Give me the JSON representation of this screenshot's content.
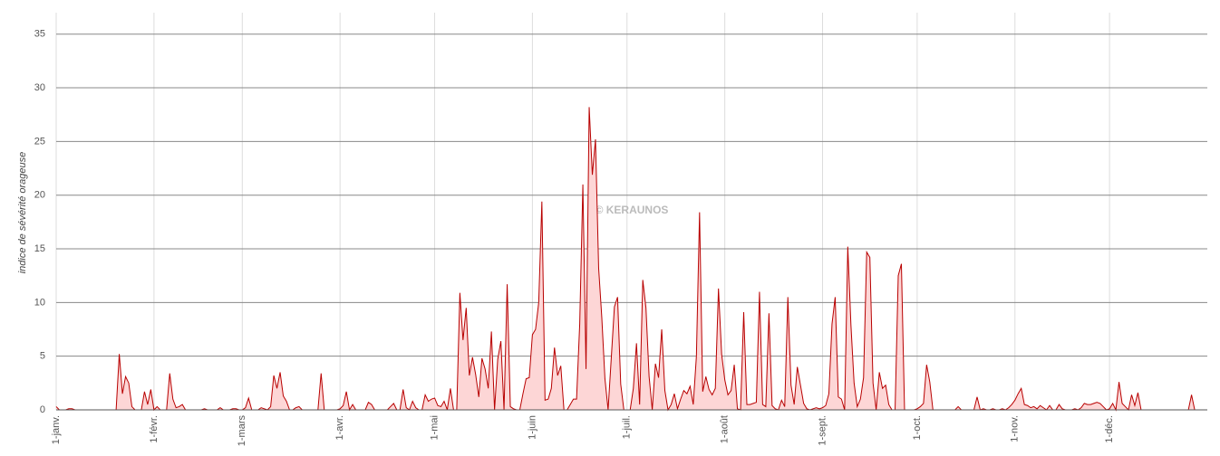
{
  "chart_data": {
    "type": "area",
    "y_label": "indice de sévérité orageuse",
    "watermark": "© KERAUNOS",
    "xlim": [
      0,
      365
    ],
    "ylim": [
      0,
      37
    ],
    "yticks": [
      0,
      5,
      10,
      15,
      20,
      25,
      30,
      35
    ],
    "xticks": [
      {
        "value": 0,
        "label": "1-janv."
      },
      {
        "value": 31,
        "label": "1-févr."
      },
      {
        "value": 59,
        "label": "1-mars"
      },
      {
        "value": 90,
        "label": "1-avr."
      },
      {
        "value": 120,
        "label": "1-mai"
      },
      {
        "value": 151,
        "label": "1-juin"
      },
      {
        "value": 181,
        "label": "1-juil."
      },
      {
        "value": 212,
        "label": "1-août"
      },
      {
        "value": 243,
        "label": "1-sept."
      },
      {
        "value": 273,
        "label": "1-oct."
      },
      {
        "value": 304,
        "label": "1-nov."
      },
      {
        "value": 334,
        "label": "1-déc."
      }
    ],
    "grid": true,
    "color": "#b80000",
    "fill": "#fdd6d6",
    "x": [
      0,
      1,
      2,
      3,
      4,
      5,
      6,
      7,
      8,
      9,
      10,
      11,
      12,
      13,
      14,
      15,
      16,
      17,
      18,
      19,
      20,
      21,
      22,
      23,
      24,
      25,
      26,
      27,
      28,
      29,
      30,
      31,
      32,
      33,
      34,
      35,
      36,
      37,
      38,
      39,
      40,
      41,
      42,
      43,
      44,
      45,
      46,
      47,
      48,
      49,
      50,
      51,
      52,
      53,
      54,
      55,
      56,
      57,
      58,
      59,
      60,
      61,
      62,
      63,
      64,
      65,
      66,
      67,
      68,
      69,
      70,
      71,
      72,
      73,
      74,
      75,
      76,
      77,
      78,
      79,
      80,
      81,
      82,
      83,
      84,
      85,
      86,
      87,
      88,
      89,
      90,
      91,
      92,
      93,
      94,
      95,
      96,
      97,
      98,
      99,
      100,
      101,
      102,
      103,
      104,
      105,
      106,
      107,
      108,
      109,
      110,
      111,
      112,
      113,
      114,
      115,
      116,
      117,
      118,
      119,
      120,
      121,
      122,
      123,
      124,
      125,
      126,
      127,
      128,
      129,
      130,
      131,
      132,
      133,
      134,
      135,
      136,
      137,
      138,
      139,
      140,
      141,
      142,
      143,
      144,
      145,
      146,
      147,
      148,
      149,
      150,
      151,
      152,
      153,
      154,
      155,
      156,
      157,
      158,
      159,
      160,
      161,
      162,
      163,
      164,
      165,
      166,
      167,
      168,
      169,
      170,
      171,
      172,
      173,
      174,
      175,
      176,
      177,
      178,
      179,
      180,
      181,
      182,
      183,
      184,
      185,
      186,
      187,
      188,
      189,
      190,
      191,
      192,
      193,
      194,
      195,
      196,
      197,
      198,
      199,
      200,
      201,
      202,
      203,
      204,
      205,
      206,
      207,
      208,
      209,
      210,
      211,
      212,
      213,
      214,
      215,
      216,
      217,
      218,
      219,
      220,
      221,
      222,
      223,
      224,
      225,
      226,
      227,
      228,
      229,
      230,
      231,
      232,
      233,
      234,
      235,
      236,
      237,
      238,
      239,
      240,
      241,
      242,
      243,
      244,
      245,
      246,
      247,
      248,
      249,
      250,
      251,
      252,
      253,
      254,
      255,
      256,
      257,
      258,
      259,
      260,
      261,
      262,
      263,
      264,
      265,
      266,
      267,
      268,
      269,
      270,
      271,
      272,
      273,
      274,
      275,
      276,
      277,
      278,
      279,
      280,
      281,
      282,
      283,
      284,
      285,
      286,
      287,
      288,
      289,
      290,
      291,
      292,
      293,
      294,
      295,
      296,
      297,
      298,
      299,
      300,
      301,
      302,
      303,
      304,
      305,
      306,
      307,
      308,
      309,
      310,
      311,
      312,
      313,
      314,
      315,
      316,
      317,
      318,
      319,
      320,
      321,
      322,
      323,
      324,
      325,
      326,
      327,
      328,
      329,
      330,
      331,
      332,
      333,
      334,
      335,
      336,
      337,
      338,
      339,
      340,
      341,
      342,
      343,
      344,
      345,
      346,
      347,
      348,
      349,
      350,
      351,
      352,
      353,
      354,
      355,
      356,
      357,
      358,
      359,
      360,
      361
    ],
    "values": [
      0.3,
      0,
      0,
      0,
      0.1,
      0.1,
      0,
      0,
      0,
      0,
      0,
      0,
      0,
      0,
      0,
      0,
      0,
      0,
      0,
      0,
      5.2,
      1.5,
      3.1,
      2.5,
      0.3,
      0,
      0,
      0,
      1.7,
      0.5,
      1.9,
      0,
      0.3,
      0,
      0,
      0,
      3.4,
      1,
      0.2,
      0.3,
      0.5,
      0,
      0,
      0,
      0,
      0,
      0,
      0.1,
      0,
      0,
      0,
      0,
      0.2,
      0,
      0,
      0,
      0.1,
      0.1,
      0,
      0,
      0.2,
      1.1,
      0,
      0,
      0,
      0.2,
      0.1,
      0,
      0.3,
      3.2,
      2,
      3.5,
      1.3,
      0.8,
      0,
      0,
      0.2,
      0.3,
      0,
      0,
      0,
      0,
      0,
      0,
      3.4,
      0,
      0,
      0,
      0,
      0,
      0.1,
      0.4,
      1.7,
      0,
      0.5,
      0,
      0,
      0,
      0,
      0.7,
      0.5,
      0,
      0,
      0,
      0,
      0,
      0.3,
      0.6,
      0,
      0,
      1.9,
      0.2,
      0,
      0.8,
      0.2,
      0,
      0,
      1.4,
      0.8,
      1.0,
      1.1,
      0.4,
      0.3,
      0.8,
      0,
      2.0,
      0,
      0,
      10.9,
      6.5,
      9.5,
      3.2,
      4.9,
      3.3,
      1.2,
      4.8,
      3.8,
      2,
      7.3,
      0,
      4.7,
      6.4,
      0,
      11.7,
      0.3,
      0.1,
      0,
      0,
      1.5,
      2.9,
      3.0,
      7,
      7.5,
      10,
      19.4,
      0.9,
      1.0,
      2.0,
      5.8,
      3.2,
      4.1,
      0,
      0,
      0.5,
      1.0,
      1.0,
      8,
      21,
      3.8,
      28.2,
      21.9,
      25.2,
      13.2,
      8.6,
      2.9,
      0,
      4.8,
      9.6,
      10.5,
      2.4,
      0,
      0,
      0,
      2.0,
      6.2,
      0.5,
      12.1,
      9.5,
      3.1,
      0,
      4.3,
      3.0,
      7.5,
      1.8,
      0,
      0.5,
      1.5,
      0.1,
      1.0,
      1.8,
      1.5,
      2.2,
      0.5,
      5,
      18.4,
      1.7,
      3.1,
      1.9,
      1.4,
      2,
      11.3,
      5.2,
      2.8,
      1.4,
      1.8,
      4.2,
      0.1,
      0,
      9.1,
      0.5,
      0.5,
      0.6,
      0.7,
      11.0,
      0.5,
      0.3,
      9.0,
      0.4,
      0.1,
      0,
      0.9,
      0.3,
      10.5,
      2.3,
      0.5,
      4.0,
      2.3,
      0.6,
      0.1,
      0,
      0.1,
      0.2,
      0.1,
      0.2,
      0.4,
      1.5,
      8,
      10.5,
      1.2,
      1.0,
      0,
      15.2,
      7.9,
      2.5,
      0.3,
      1.0,
      3,
      14.7,
      14.2,
      2.5,
      0,
      3.5,
      2.0,
      2.3,
      0.5,
      0,
      0,
      12.5,
      13.6,
      0,
      0,
      0,
      0,
      0.1,
      0.3,
      0.6,
      4.2,
      2.6,
      0,
      0,
      0,
      0,
      0,
      0,
      0,
      0,
      0.3,
      0,
      0,
      0,
      0,
      0,
      1.2,
      0,
      0.1,
      0,
      0,
      0.1,
      0,
      0,
      0.1,
      0,
      0.2,
      0.5,
      0.9,
      1.5,
      2.0,
      0.5,
      0.4,
      0.2,
      0.3,
      0.1,
      0.4,
      0.2,
      0,
      0.4,
      0,
      0,
      0.5,
      0.1,
      0,
      0,
      0,
      0.1,
      0,
      0.2,
      0.6,
      0.5,
      0.5,
      0.6,
      0.7,
      0.6,
      0.3,
      0,
      0.1,
      0.6,
      0,
      2.6,
      0.6,
      0.3,
      0,
      1.4,
      0.4,
      1.6,
      0,
      0,
      0,
      0,
      0,
      0,
      0,
      0,
      0,
      0,
      0,
      0,
      0,
      0,
      0,
      0,
      1.4,
      0
    ]
  }
}
